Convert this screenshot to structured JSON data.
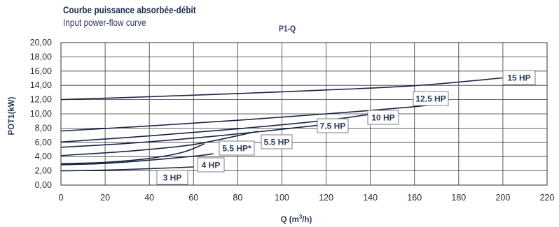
{
  "header": {
    "title_fr": "Courbe puissance absorbée-débit",
    "title_en": "Input power-flow curve",
    "chart_label": "P1-Q"
  },
  "colors": {
    "curve": "#1b2448",
    "grid": "#333333",
    "text": "#2b3a5a"
  },
  "chart_data": {
    "type": "line",
    "title": "P1-Q",
    "xlabel": "Q (m³/h)",
    "xlabel_main": "Q (m",
    "xlabel_sup": "3",
    "xlabel_end": "/h)",
    "ylabel": "POT1(kW)",
    "xlim": [
      0,
      220
    ],
    "ylim": [
      0,
      20
    ],
    "x_ticks": [
      "0",
      "20",
      "40",
      "60",
      "80",
      "100",
      "120",
      "140",
      "160",
      "180",
      "200",
      "220"
    ],
    "y_ticks": [
      "0,00",
      "2,00",
      "4,00",
      "6,00",
      "8,00",
      "10,00",
      "12,00",
      "14,00",
      "16,00",
      "18,00",
      "20,00"
    ],
    "grid": true,
    "series": [
      {
        "name": "15 HP",
        "x": [
          0,
          40,
          80,
          120,
          160,
          200
        ],
        "y": [
          12.0,
          12.4,
          12.85,
          13.35,
          13.95,
          15.05
        ]
      },
      {
        "name": "12.5 HP",
        "x": [
          0,
          40,
          80,
          120,
          160,
          175
        ],
        "y": [
          7.6,
          8.3,
          9.1,
          10.0,
          11.0,
          11.6
        ]
      },
      {
        "name": "10 HP",
        "x": [
          0,
          40,
          80,
          120,
          150
        ],
        "y": [
          6.05,
          6.9,
          7.9,
          9.1,
          10.4
        ]
      },
      {
        "name": "7.5 HP",
        "x": [
          0,
          30,
          60,
          90,
          125
        ],
        "y": [
          5.3,
          5.85,
          6.6,
          7.5,
          8.7
        ]
      },
      {
        "name": "5.5 HP",
        "x": [
          0,
          30,
          60,
          89
        ],
        "y": [
          4.15,
          4.75,
          5.7,
          7.55
        ]
      },
      {
        "name": "5.5 HP*",
        "x": [
          0,
          20,
          40,
          55,
          65
        ],
        "y": [
          3.0,
          3.2,
          3.75,
          4.6,
          5.8
        ]
      },
      {
        "name": "4 HP",
        "x": [
          0,
          20,
          40,
          60,
          69
        ],
        "y": [
          2.85,
          3.05,
          3.5,
          4.05,
          4.4
        ]
      },
      {
        "name": "3 HP",
        "x": [
          0,
          20,
          40,
          60
        ],
        "y": [
          2.0,
          2.1,
          2.3,
          2.55
        ]
      }
    ]
  }
}
